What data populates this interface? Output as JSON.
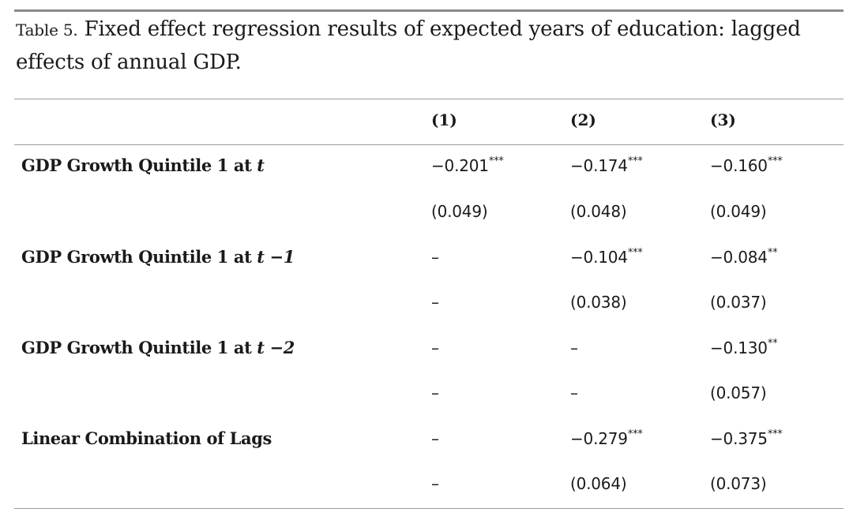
{
  "caption": {
    "label": "Table 5.",
    "text": " Fixed effect regression results of expected years of education: lagged effects of annual GDP."
  },
  "columns": [
    "(1)",
    "(2)",
    "(3)"
  ],
  "rows": [
    {
      "label_main": "GDP Growth Quintile 1 at ",
      "label_var": "t",
      "coef": [
        {
          "value": "−0.201",
          "stars": "***"
        },
        {
          "value": "−0.174",
          "stars": "***"
        },
        {
          "value": "−0.160",
          "stars": "***"
        }
      ],
      "se": [
        "(0.049)",
        "(0.048)",
        "(0.049)"
      ]
    },
    {
      "label_main": "GDP Growth Quintile 1 at ",
      "label_var": "t −1",
      "coef": [
        {
          "value": "–",
          "stars": ""
        },
        {
          "value": "−0.104",
          "stars": "***"
        },
        {
          "value": "−0.084",
          "stars": "**"
        }
      ],
      "se": [
        "–",
        "(0.038)",
        "(0.037)"
      ]
    },
    {
      "label_main": "GDP Growth Quintile 1 at ",
      "label_var": "t −2",
      "coef": [
        {
          "value": "–",
          "stars": ""
        },
        {
          "value": "–",
          "stars": ""
        },
        {
          "value": "−0.130",
          "stars": "**"
        }
      ],
      "se": [
        "–",
        "–",
        "(0.057)"
      ]
    },
    {
      "label_main": "Linear Combination of Lags",
      "label_var": "",
      "coef": [
        {
          "value": "–",
          "stars": ""
        },
        {
          "value": "−0.279",
          "stars": "***"
        },
        {
          "value": "−0.375",
          "stars": "***"
        }
      ],
      "se": [
        "–",
        "(0.064)",
        "(0.073)"
      ]
    }
  ]
}
